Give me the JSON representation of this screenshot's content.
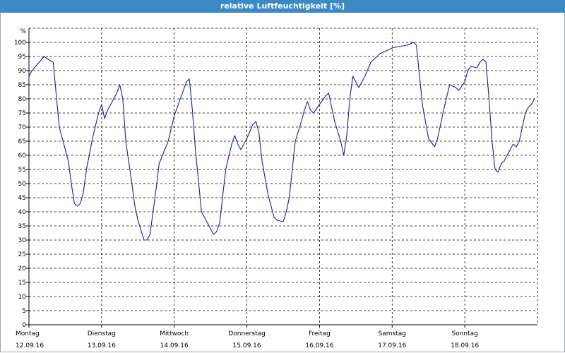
{
  "window": {
    "title": "relative Luftfeuchtigkeit [%]"
  },
  "colors": {
    "title_bar": "#3b8ac4",
    "line": "#1a1aa6",
    "grid": "#000000"
  },
  "chart_data": {
    "type": "line",
    "title": "relative Luftfeuchtigkeit [%]",
    "ylabel": "%",
    "ylim": [
      0,
      105
    ],
    "yticks": [
      0,
      5,
      10,
      15,
      20,
      25,
      30,
      35,
      40,
      45,
      50,
      55,
      60,
      65,
      70,
      75,
      80,
      85,
      90,
      95,
      100
    ],
    "xlim": [
      "12.09.16 00:00",
      "19.09.16 00:00"
    ],
    "grid": true,
    "days": [
      {
        "weekday": "Montag",
        "date": "12.09.16"
      },
      {
        "weekday": "Dienstag",
        "date": "13.09.16"
      },
      {
        "weekday": "Mittwoch",
        "date": "14.09.16"
      },
      {
        "weekday": "Donnerstag",
        "date": "15.09.16"
      },
      {
        "weekday": "Freitag",
        "date": "16.09.16"
      },
      {
        "weekday": "Samstag",
        "date": "17.09.16"
      },
      {
        "weekday": "Sonntag",
        "date": "18.09.16"
      }
    ],
    "series": [
      {
        "points": [
          [
            "12.09.16 00:00",
            88
          ],
          [
            "12.09.16 01:00",
            90
          ],
          [
            "12.09.16 03:00",
            92.5
          ],
          [
            "12.09.16 05:00",
            95
          ],
          [
            "12.09.16 07:00",
            93.5
          ],
          [
            "12.09.16 08:00",
            93
          ],
          [
            "12.09.16 10:00",
            70
          ],
          [
            "12.09.16 13:00",
            58
          ],
          [
            "12.09.16 14:00",
            50
          ],
          [
            "12.09.16 15:00",
            43
          ],
          [
            "12.09.16 16:00",
            42
          ],
          [
            "12.09.16 17:00",
            43
          ],
          [
            "12.09.16 18:00",
            47
          ],
          [
            "12.09.16 19:00",
            55
          ],
          [
            "12.09.16 21:00",
            66
          ],
          [
            "12.09.16 23:00",
            75
          ],
          [
            "13.09.16 00:00",
            78
          ],
          [
            "13.09.16 01:00",
            73
          ],
          [
            "13.09.16 02:00",
            76
          ],
          [
            "13.09.16 04:00",
            80
          ],
          [
            "13.09.16 05:00",
            82
          ],
          [
            "13.09.16 06:00",
            85
          ],
          [
            "13.09.16 07:00",
            80
          ],
          [
            "13.09.16 08:00",
            65
          ],
          [
            "13.09.16 10:00",
            50
          ],
          [
            "13.09.16 11:00",
            42
          ],
          [
            "13.09.16 12:00",
            37
          ],
          [
            "13.09.16 14:00",
            30
          ],
          [
            "13.09.16 15:00",
            30
          ],
          [
            "13.09.16 16:00",
            32
          ],
          [
            "13.09.16 17:00",
            40
          ],
          [
            "13.09.16 18:00",
            48
          ],
          [
            "13.09.16 19:00",
            57
          ],
          [
            "13.09.16 22:00",
            65
          ],
          [
            "14.09.16 00:00",
            74
          ],
          [
            "14.09.16 02:00",
            80
          ],
          [
            "14.09.16 04:00",
            86
          ],
          [
            "14.09.16 05:00",
            87
          ],
          [
            "14.09.16 06:00",
            76
          ],
          [
            "14.09.16 07:00",
            62
          ],
          [
            "14.09.16 09:00",
            40
          ],
          [
            "14.09.16 11:00",
            36
          ],
          [
            "14.09.16 13:00",
            32
          ],
          [
            "14.09.16 14:00",
            33
          ],
          [
            "14.09.16 15:00",
            36
          ],
          [
            "14.09.16 17:00",
            55
          ],
          [
            "14.09.16 19:00",
            64
          ],
          [
            "14.09.16 20:00",
            67
          ],
          [
            "14.09.16 21:00",
            64
          ],
          [
            "14.09.16 22:00",
            62
          ],
          [
            "14.09.16 23:00",
            64
          ],
          [
            "15.09.16 00:00",
            66
          ],
          [
            "15.09.16 02:00",
            71
          ],
          [
            "15.09.16 03:00",
            72
          ],
          [
            "15.09.16 04:00",
            68
          ],
          [
            "15.09.16 05:00",
            58
          ],
          [
            "15.09.16 07:00",
            46
          ],
          [
            "15.09.16 09:00",
            38
          ],
          [
            "15.09.16 10:00",
            37
          ],
          [
            "15.09.16 12:00",
            36.5
          ],
          [
            "15.09.16 13:00",
            40
          ],
          [
            "15.09.16 14:00",
            45
          ],
          [
            "15.09.16 16:00",
            65
          ],
          [
            "15.09.16 18:00",
            72
          ],
          [
            "15.09.16 19:00",
            76
          ],
          [
            "15.09.16 20:00",
            79
          ],
          [
            "15.09.16 21:00",
            76
          ],
          [
            "15.09.16 22:00",
            75
          ],
          [
            "16.09.16 00:00",
            78
          ],
          [
            "16.09.16 02:00",
            81
          ],
          [
            "16.09.16 03:00",
            82
          ],
          [
            "16.09.16 05:00",
            72
          ],
          [
            "16.09.16 07:00",
            65
          ],
          [
            "16.09.16 08:00",
            60
          ],
          [
            "16.09.16 09:00",
            67
          ],
          [
            "16.09.16 10:00",
            80
          ],
          [
            "16.09.16 11:00",
            88
          ],
          [
            "16.09.16 13:00",
            84
          ],
          [
            "16.09.16 15:00",
            88
          ],
          [
            "16.09.16 17:00",
            93
          ],
          [
            "16.09.16 19:00",
            95
          ],
          [
            "16.09.16 20:00",
            96
          ],
          [
            "16.09.16 22:00",
            97
          ],
          [
            "17.09.16 00:00",
            98
          ],
          [
            "17.09.16 02:00",
            98.5
          ],
          [
            "17.09.16 05:00",
            99
          ],
          [
            "17.09.16 07:00",
            100
          ],
          [
            "17.09.16 08:00",
            99
          ],
          [
            "17.09.16 10:00",
            78
          ],
          [
            "17.09.16 12:00",
            66
          ],
          [
            "17.09.16 14:00",
            63
          ],
          [
            "17.09.16 15:00",
            66
          ],
          [
            "17.09.16 17:00",
            76
          ],
          [
            "17.09.16 19:00",
            85
          ],
          [
            "17.09.16 21:00",
            84
          ],
          [
            "17.09.16 22:00",
            83
          ],
          [
            "18.09.16 00:00",
            86
          ],
          [
            "18.09.16 01:00",
            90
          ],
          [
            "18.09.16 02:00",
            91.5
          ],
          [
            "18.09.16 04:00",
            91
          ],
          [
            "18.09.16 05:00",
            93
          ],
          [
            "18.09.16 06:00",
            94
          ],
          [
            "18.09.16 07:00",
            93
          ],
          [
            "18.09.16 08:00",
            80
          ],
          [
            "18.09.16 09:00",
            65
          ],
          [
            "18.09.16 10:00",
            55
          ],
          [
            "18.09.16 11:00",
            54
          ],
          [
            "18.09.16 12:00",
            57
          ],
          [
            "18.09.16 13:00",
            58
          ],
          [
            "18.09.16 14:00",
            60
          ],
          [
            "18.09.16 15:00",
            62
          ],
          [
            "18.09.16 16:00",
            64
          ],
          [
            "18.09.16 17:00",
            63
          ],
          [
            "18.09.16 18:00",
            65
          ],
          [
            "18.09.16 19:00",
            70
          ],
          [
            "18.09.16 20:00",
            75
          ],
          [
            "18.09.16 21:00",
            77
          ],
          [
            "18.09.16 22:00",
            78
          ],
          [
            "18.09.16 23:00",
            80
          ]
        ]
      }
    ]
  }
}
